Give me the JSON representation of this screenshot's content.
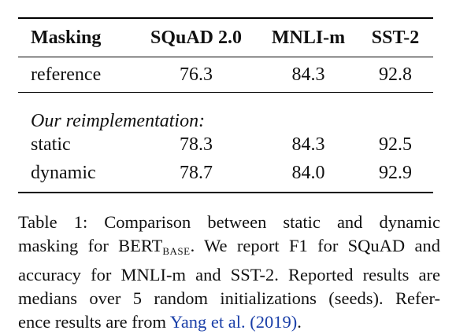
{
  "table": {
    "headers": {
      "method": "Masking",
      "squad": "SQuAD 2.0",
      "mnli": "MNLI-m",
      "sst": "SST-2"
    },
    "reference": {
      "method": "reference",
      "squad": "76.3",
      "mnli": "84.3",
      "sst": "92.8"
    },
    "section_label": "Our reimplementation:",
    "rows": [
      {
        "method": "static",
        "squad": "78.3",
        "mnli": "84.3",
        "sst": "92.5"
      },
      {
        "method": "dynamic",
        "squad": "78.7",
        "mnli": "84.0",
        "sst": "92.9"
      }
    ]
  },
  "caption": {
    "line1": "Table 1: Comparison between static and dynamic",
    "line2_a": "masking for BERT",
    "line2_sub": "BASE",
    "line2_b": ". We report F1 for SQuAD and",
    "line3": "accuracy for MNLI-m and SST-2. Reported results are",
    "line4": "medians over 5 random initializations (seeds). Refer-",
    "line5_a": "ence results are from ",
    "line5_cite": "Yang et al. (2019)",
    "line5_b": "."
  }
}
